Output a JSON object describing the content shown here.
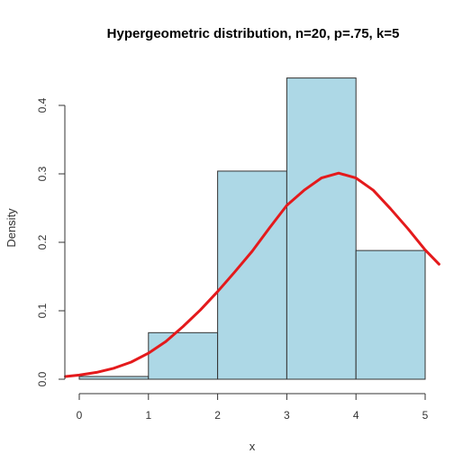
{
  "chart_data": {
    "type": "bar",
    "title": "Hypergeometric distribution, n=20, p=.75, k=5",
    "xlabel": "x",
    "ylabel": "Density",
    "xlim": [
      0,
      5
    ],
    "ylim": [
      0,
      0.44
    ],
    "x_ticks": [
      "0",
      "1",
      "2",
      "3",
      "4",
      "5"
    ],
    "y_ticks": [
      "0.0",
      "0.1",
      "0.2",
      "0.3",
      "0.4"
    ],
    "bins": [
      {
        "x0": 0,
        "x1": 1,
        "value": 0.004
      },
      {
        "x0": 1,
        "x1": 2,
        "value": 0.068
      },
      {
        "x0": 2,
        "x1": 3,
        "value": 0.304
      },
      {
        "x0": 3,
        "x1": 4,
        "value": 0.44
      },
      {
        "x0": 4,
        "x1": 5,
        "value": 0.188
      }
    ],
    "bar_fill": "#add8e6",
    "bar_stroke": "#333333",
    "curve_color": "#e41a1c",
    "curve": {
      "x": [
        -0.2,
        0,
        0.25,
        0.5,
        0.75,
        1.0,
        1.25,
        1.5,
        1.75,
        2.0,
        2.25,
        2.5,
        2.75,
        3.0,
        3.25,
        3.5,
        3.75,
        4.0,
        4.25,
        4.5,
        4.75,
        5.0,
        5.2
      ],
      "y": [
        0.004,
        0.006,
        0.01,
        0.016,
        0.025,
        0.038,
        0.055,
        0.077,
        0.101,
        0.128,
        0.157,
        0.187,
        0.221,
        0.254,
        0.276,
        0.294,
        0.301,
        0.294,
        0.276,
        0.249,
        0.22,
        0.189,
        0.168
      ]
    },
    "grid": false,
    "legend": "none"
  }
}
